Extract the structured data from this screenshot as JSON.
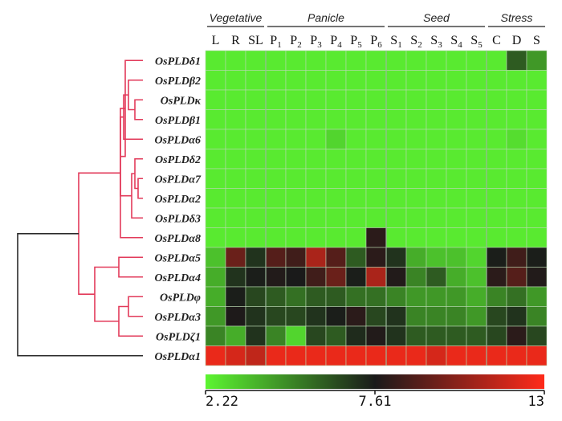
{
  "chart_data": {
    "type": "heatmap",
    "groups": [
      {
        "label": "Vegetative",
        "columns": [
          "L",
          "R",
          "SL"
        ]
      },
      {
        "label": "Panicle",
        "columns": [
          "P1",
          "P2",
          "P3",
          "P4",
          "P5",
          "P6"
        ]
      },
      {
        "label": "Seed",
        "columns": [
          "S1",
          "S2",
          "S3",
          "S4",
          "S5"
        ]
      },
      {
        "label": "Stress",
        "columns": [
          "C",
          "D",
          "S"
        ]
      }
    ],
    "columns": [
      {
        "main": "L",
        "sub": ""
      },
      {
        "main": "R",
        "sub": ""
      },
      {
        "main": "SL",
        "sub": ""
      },
      {
        "main": "P",
        "sub": "1"
      },
      {
        "main": "P",
        "sub": "2"
      },
      {
        "main": "P",
        "sub": "3"
      },
      {
        "main": "P",
        "sub": "4"
      },
      {
        "main": "P",
        "sub": "5"
      },
      {
        "main": "P",
        "sub": "6"
      },
      {
        "main": "S",
        "sub": "1"
      },
      {
        "main": "S",
        "sub": "2"
      },
      {
        "main": "S",
        "sub": "3"
      },
      {
        "main": "S",
        "sub": "4"
      },
      {
        "main": "S",
        "sub": "5"
      },
      {
        "main": "C",
        "sub": ""
      },
      {
        "main": "D",
        "sub": ""
      },
      {
        "main": "S",
        "sub": ""
      }
    ],
    "rows": [
      {
        "name": "OsPLDδ1",
        "values": [
          2.5,
          2.5,
          2.5,
          2.5,
          2.5,
          2.5,
          2.5,
          2.5,
          2.5,
          2.5,
          2.5,
          2.5,
          2.5,
          2.5,
          2.5,
          6.0,
          4.5
        ]
      },
      {
        "name": "OsPLDβ2",
        "values": [
          2.5,
          2.5,
          2.5,
          2.5,
          2.5,
          2.5,
          2.5,
          2.5,
          2.5,
          2.5,
          2.5,
          2.5,
          2.5,
          2.5,
          2.5,
          2.5,
          2.5
        ]
      },
      {
        "name": "OsPLDκ",
        "values": [
          2.5,
          2.5,
          2.5,
          2.5,
          2.5,
          2.5,
          2.5,
          2.5,
          2.5,
          2.5,
          2.5,
          2.5,
          2.5,
          2.5,
          2.5,
          2.5,
          2.5
        ]
      },
      {
        "name": "OsPLDβ1",
        "values": [
          2.5,
          2.5,
          2.5,
          2.5,
          2.5,
          2.5,
          2.5,
          2.5,
          2.5,
          2.5,
          2.5,
          2.5,
          2.5,
          2.5,
          2.5,
          2.5,
          2.5
        ]
      },
      {
        "name": "OsPLDα6",
        "values": [
          2.5,
          2.5,
          2.5,
          2.5,
          2.5,
          2.5,
          3.0,
          2.5,
          2.5,
          2.5,
          2.5,
          2.5,
          2.5,
          2.5,
          2.5,
          2.8,
          2.5
        ]
      },
      {
        "name": "OsPLDδ2",
        "values": [
          2.5,
          2.5,
          2.5,
          2.5,
          2.5,
          2.5,
          2.5,
          2.5,
          2.5,
          2.5,
          2.5,
          2.5,
          2.5,
          2.5,
          2.5,
          2.5,
          2.5
        ]
      },
      {
        "name": "OsPLDα7",
        "values": [
          2.5,
          2.5,
          2.5,
          2.5,
          2.5,
          2.5,
          2.5,
          2.5,
          2.5,
          2.5,
          2.5,
          2.5,
          2.5,
          2.5,
          2.5,
          2.5,
          2.5
        ]
      },
      {
        "name": "OsPLDα2",
        "values": [
          2.5,
          2.5,
          2.5,
          2.5,
          2.5,
          2.5,
          2.5,
          2.5,
          2.5,
          2.5,
          2.5,
          2.5,
          2.5,
          2.5,
          2.5,
          2.5,
          2.5
        ]
      },
      {
        "name": "OsPLDδ3",
        "values": [
          2.5,
          2.5,
          2.5,
          2.5,
          2.5,
          2.5,
          2.5,
          2.5,
          2.5,
          2.5,
          2.5,
          2.5,
          2.5,
          2.5,
          2.5,
          2.5,
          2.5
        ]
      },
      {
        "name": "OsPLDα8",
        "values": [
          2.5,
          2.5,
          2.5,
          2.5,
          2.5,
          2.5,
          2.5,
          2.5,
          8.0,
          2.5,
          2.5,
          2.5,
          2.5,
          2.5,
          2.5,
          2.5,
          2.5
        ]
      },
      {
        "name": "OsPLDα5",
        "values": [
          3.5,
          9.5,
          7.0,
          9.0,
          8.5,
          11.0,
          9.0,
          6.0,
          8.0,
          7.0,
          4.0,
          3.5,
          3.5,
          3.0,
          7.5,
          8.5,
          7.5
        ]
      },
      {
        "name": "OsPLDα4",
        "values": [
          4.0,
          7.0,
          7.5,
          7.8,
          7.6,
          8.5,
          9.5,
          7.5,
          11.0,
          7.8,
          5.0,
          6.0,
          4.0,
          3.5,
          8.0,
          9.0,
          7.8
        ]
      },
      {
        "name": "OsPLDφ",
        "values": [
          4.0,
          7.5,
          6.5,
          6.0,
          5.5,
          6.0,
          6.0,
          5.5,
          5.5,
          5.0,
          4.5,
          4.5,
          4.5,
          4.0,
          5.0,
          5.5,
          4.5
        ]
      },
      {
        "name": "OsPLDα3",
        "values": [
          4.5,
          7.7,
          7.0,
          6.5,
          6.5,
          7.0,
          7.5,
          8.0,
          6.5,
          7.0,
          5.0,
          5.0,
          5.0,
          4.5,
          6.5,
          7.0,
          5.0
        ]
      },
      {
        "name": "OsPLDζ1",
        "values": [
          5.0,
          4.0,
          7.0,
          5.0,
          3.0,
          6.5,
          6.0,
          7.2,
          7.8,
          7.0,
          6.0,
          6.0,
          6.0,
          6.0,
          6.5,
          8.0,
          6.5
        ]
      },
      {
        "name": "OsPLDα1",
        "values": [
          12.5,
          12.0,
          11.5,
          12.5,
          12.5,
          12.5,
          12.5,
          12.5,
          12.5,
          12.5,
          12.5,
          12.0,
          12.5,
          12.5,
          12.5,
          12.5,
          12.5
        ]
      }
    ],
    "colorscale": {
      "min": 2.22,
      "mid": 7.61,
      "max": 13,
      "min_label": "2.22",
      "mid_label": "7.61",
      "max_label": "13",
      "low_color": "#5cf531",
      "mid_color": "#1a1a1a",
      "high_color": "#ff2a1a"
    },
    "dendrogram": {
      "red_color": "#e23a5a",
      "root_color": "#2a2a2a"
    }
  }
}
